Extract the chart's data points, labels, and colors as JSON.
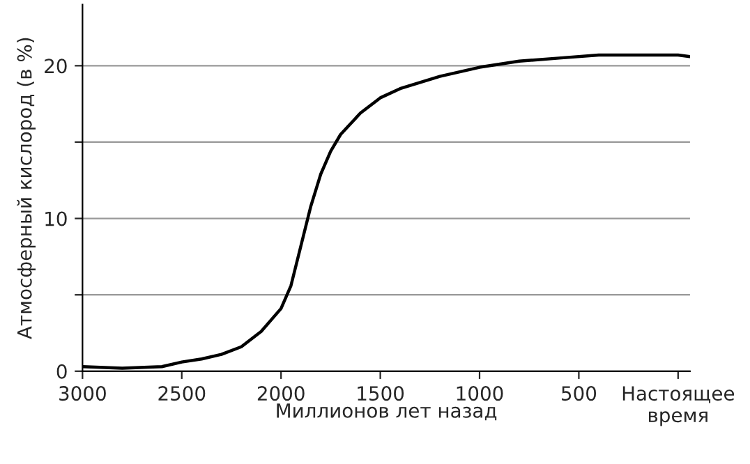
{
  "chart_data": {
    "type": "line",
    "xlabel": "Миллионов лет назад",
    "ylabel": "Атмосферный кислород (в %)",
    "x": [
      3000,
      2800,
      2600,
      2500,
      2400,
      2300,
      2200,
      2100,
      2000,
      1950,
      1900,
      1850,
      1800,
      1750,
      1700,
      1600,
      1500,
      1400,
      1200,
      1000,
      800,
      600,
      400,
      200,
      0,
      -60
    ],
    "series": [
      {
        "color": "#000000",
        "values": [
          0.3,
          0.2,
          0.3,
          0.6,
          0.8,
          1.1,
          1.6,
          2.6,
          4.1,
          5.6,
          8.2,
          10.8,
          12.9,
          14.4,
          15.5,
          16.9,
          17.9,
          18.5,
          19.3,
          19.9,
          20.3,
          20.5,
          20.7,
          20.7,
          20.7,
          20.6
        ]
      }
    ],
    "xlim": [
      3000,
      -60
    ],
    "ylim": [
      0,
      24
    ],
    "xticks": [
      3000,
      2500,
      2000,
      1500,
      1000,
      500,
      {
        "value": 0,
        "label": "Настоящее\nвремя"
      }
    ],
    "yticks": [
      0,
      {
        "value": 5,
        "label": null
      },
      10,
      {
        "value": 15,
        "label": null
      },
      20
    ],
    "grid": "y",
    "line_style": "solid",
    "marker": "none"
  }
}
